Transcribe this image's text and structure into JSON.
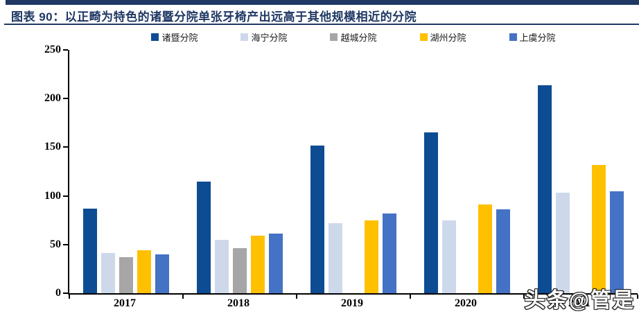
{
  "header": {
    "title": "图表 90：以正畸为特色的诸暨分院单张牙椅产出远高于其他规模相近的分院",
    "accent_color": "#1F3864"
  },
  "chart_data": {
    "type": "bar",
    "title": "图表 90：以正畸为特色的诸暨分院单张牙椅产出远高于其他规模相近的分院",
    "categories": [
      "2017",
      "2018",
      "2019",
      "2020",
      "2021"
    ],
    "series": [
      {
        "name": "诸暨分院",
        "color": "#0D4C92",
        "values": [
          87,
          115,
          152,
          165,
          214
        ]
      },
      {
        "name": "海宁分院",
        "color": "#CDD9EB",
        "values": [
          41,
          55,
          72,
          75,
          103
        ]
      },
      {
        "name": "越城分院",
        "color": "#A6A6A6",
        "values": [
          37,
          46,
          null,
          null,
          null
        ]
      },
      {
        "name": "湖州分院",
        "color": "#FFC000",
        "values": [
          44,
          59,
          75,
          91,
          132
        ]
      },
      {
        "name": "上虞分院",
        "color": "#4472C4",
        "values": [
          40,
          61,
          82,
          86,
          105
        ]
      }
    ],
    "xlabel": "",
    "ylabel": "",
    "ylim": [
      0,
      250
    ],
    "yticks": [
      0,
      50,
      100,
      150,
      200,
      250
    ],
    "grid": false,
    "legend_position": "top",
    "axis_color": "#000000"
  },
  "watermark": {
    "text": "头条@管是"
  }
}
